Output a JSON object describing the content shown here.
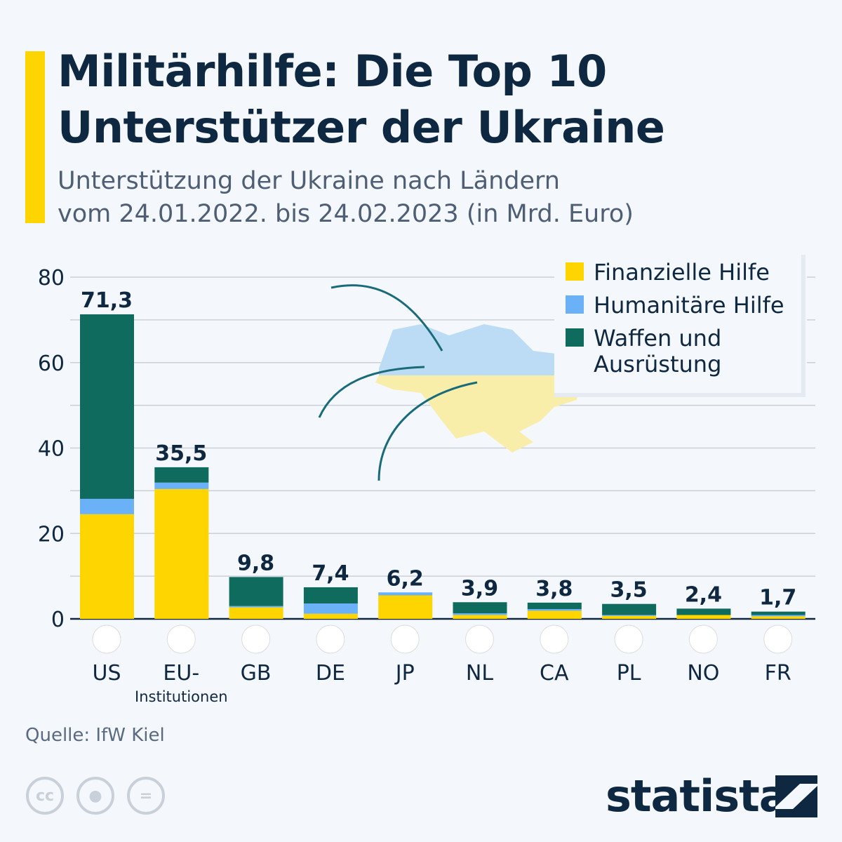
{
  "header": {
    "title_line1": "Militärhilfe: Die Top 10",
    "title_line2": "Unterstützer der Ukraine",
    "subtitle_line1": "Unterstützung der Ukraine nach Ländern",
    "subtitle_line2": "vom 24.01.2022. bis 24.02.2023 (in Mrd. Euro)"
  },
  "footer": {
    "source": "Quelle: IfW Kiel",
    "brand": "statista",
    "cc_icons": [
      "cc-icon",
      "attribution-icon",
      "noderivs-icon"
    ]
  },
  "colors": {
    "financial": "#ffd500",
    "humanitarian": "#6bb1f8",
    "weapons": "#0f6b5e",
    "text": "#0f2841",
    "grid": "#c9d0d8"
  },
  "chart_data": {
    "type": "bar",
    "stacked": true,
    "title": "Militärhilfe: Die Top 10 Unterstützer der Ukraine",
    "ylabel": "Mrd. Euro",
    "ylim": [
      0,
      80
    ],
    "yticks": [
      0,
      20,
      40,
      60,
      80
    ],
    "grid": true,
    "legend_position": "top-right",
    "categories": [
      "US",
      "EU-",
      "GB",
      "DE",
      "JP",
      "NL",
      "CA",
      "PL",
      "NO",
      "FR"
    ],
    "category_sublabels": [
      "",
      "Institutionen",
      "",
      "",
      "",
      "",
      "",
      "",
      "",
      ""
    ],
    "totals": [
      "71,3",
      "35,5",
      "9,8",
      "7,4",
      "6,2",
      "3,9",
      "3,8",
      "3,5",
      "2,4",
      "1,7"
    ],
    "series": [
      {
        "name": "Finanzielle Hilfe",
        "values": [
          24.5,
          30.4,
          2.7,
          1.2,
          5.5,
          0.9,
          1.9,
          0.7,
          0.9,
          0.6
        ]
      },
      {
        "name": "Humanitäre Hilfe",
        "values": [
          3.6,
          1.5,
          0.3,
          2.4,
          0.7,
          0.4,
          0.4,
          0.2,
          0.0,
          0.3
        ]
      },
      {
        "name": "Waffen und Ausrüstung",
        "values": [
          43.2,
          3.6,
          6.8,
          3.8,
          0.0,
          2.6,
          1.5,
          2.6,
          1.5,
          0.8
        ]
      }
    ],
    "legend": [
      "Finanzielle Hilfe",
      "Humanitäre Hilfe",
      "Waffen und",
      "Ausrüstung"
    ]
  }
}
